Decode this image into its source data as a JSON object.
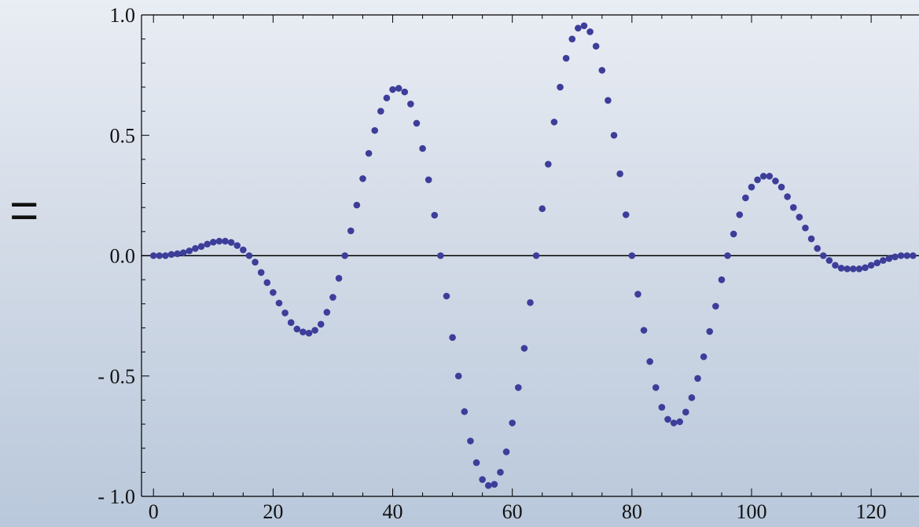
{
  "prefix": "=",
  "colors": {
    "marker": "#3d3d9a",
    "axis": "#000000"
  },
  "chart_data": {
    "type": "scatter",
    "title": "",
    "xlabel": "",
    "ylabel": "",
    "xlim": [
      -2,
      128
    ],
    "ylim": [
      -1.0,
      1.0
    ],
    "xticks": [
      {
        "value": 0,
        "label": "0"
      },
      {
        "value": 20,
        "label": "20"
      },
      {
        "value": 40,
        "label": "40"
      },
      {
        "value": 60,
        "label": "60"
      },
      {
        "value": 80,
        "label": "80"
      },
      {
        "value": 100,
        "label": "100"
      },
      {
        "value": 120,
        "label": "120"
      }
    ],
    "yticks": [
      {
        "value": 1.0,
        "label": "1.0"
      },
      {
        "value": 0.5,
        "label": "0.5"
      },
      {
        "value": 0.0,
        "label": "0.0"
      },
      {
        "value": -0.5,
        "label": "- 0.5"
      },
      {
        "value": -1.0,
        "label": "- 1.0"
      }
    ],
    "grid": false,
    "legend": "none",
    "x": [
      0,
      1,
      2,
      3,
      4,
      5,
      6,
      7,
      8,
      9,
      10,
      11,
      12,
      13,
      14,
      15,
      16,
      17,
      18,
      19,
      20,
      21,
      22,
      23,
      24,
      25,
      26,
      27,
      28,
      29,
      30,
      31,
      32,
      33,
      34,
      35,
      36,
      37,
      38,
      39,
      40,
      41,
      42,
      43,
      44,
      45,
      46,
      47,
      48,
      49,
      50,
      51,
      52,
      53,
      54,
      55,
      56,
      57,
      58,
      59,
      60,
      61,
      62,
      63,
      64,
      65,
      66,
      67,
      68,
      69,
      70,
      71,
      72,
      73,
      74,
      75,
      76,
      77,
      78,
      79,
      80,
      81,
      82,
      83,
      84,
      85,
      86,
      87,
      88,
      89,
      90,
      91,
      92,
      93,
      94,
      95,
      96,
      97,
      98,
      99,
      100,
      101,
      102,
      103,
      104,
      105,
      106,
      107,
      108,
      109,
      110,
      111,
      112,
      113,
      114,
      115,
      116,
      117,
      118,
      119,
      120,
      121,
      122,
      123,
      124,
      125,
      126,
      127
    ],
    "y": [
      0.0,
      0.0,
      0.0,
      0.005,
      0.008,
      0.012,
      0.02,
      0.03,
      0.038,
      0.048,
      0.056,
      0.06,
      0.06,
      0.055,
      0.042,
      0.024,
      0.0,
      -0.027,
      -0.07,
      -0.112,
      -0.153,
      -0.197,
      -0.238,
      -0.278,
      -0.305,
      -0.317,
      -0.322,
      -0.31,
      -0.285,
      -0.235,
      -0.173,
      -0.094,
      0.0,
      0.103,
      0.21,
      0.32,
      0.425,
      0.52,
      0.6,
      0.655,
      0.69,
      0.695,
      0.68,
      0.63,
      0.55,
      0.445,
      0.315,
      0.168,
      0.0,
      -0.168,
      -0.34,
      -0.5,
      -0.648,
      -0.77,
      -0.86,
      -0.93,
      -0.955,
      -0.95,
      -0.9,
      -0.815,
      -0.695,
      -0.548,
      -0.385,
      -0.195,
      0.0,
      0.195,
      0.38,
      0.555,
      0.7,
      0.82,
      0.9,
      0.945,
      0.955,
      0.93,
      0.87,
      0.77,
      0.645,
      0.5,
      0.34,
      0.17,
      0.0,
      -0.16,
      -0.31,
      -0.44,
      -0.548,
      -0.63,
      -0.68,
      -0.695,
      -0.69,
      -0.65,
      -0.59,
      -0.51,
      -0.42,
      -0.315,
      -0.21,
      -0.1,
      0.0,
      0.09,
      0.17,
      0.24,
      0.285,
      0.315,
      0.33,
      0.33,
      0.31,
      0.285,
      0.245,
      0.2,
      0.16,
      0.115,
      0.07,
      0.03,
      0.0,
      -0.02,
      -0.04,
      -0.052,
      -0.055,
      -0.055,
      -0.055,
      -0.05,
      -0.04,
      -0.03,
      -0.02,
      -0.012,
      -0.005,
      0.0,
      0.0,
      0.0
    ]
  }
}
